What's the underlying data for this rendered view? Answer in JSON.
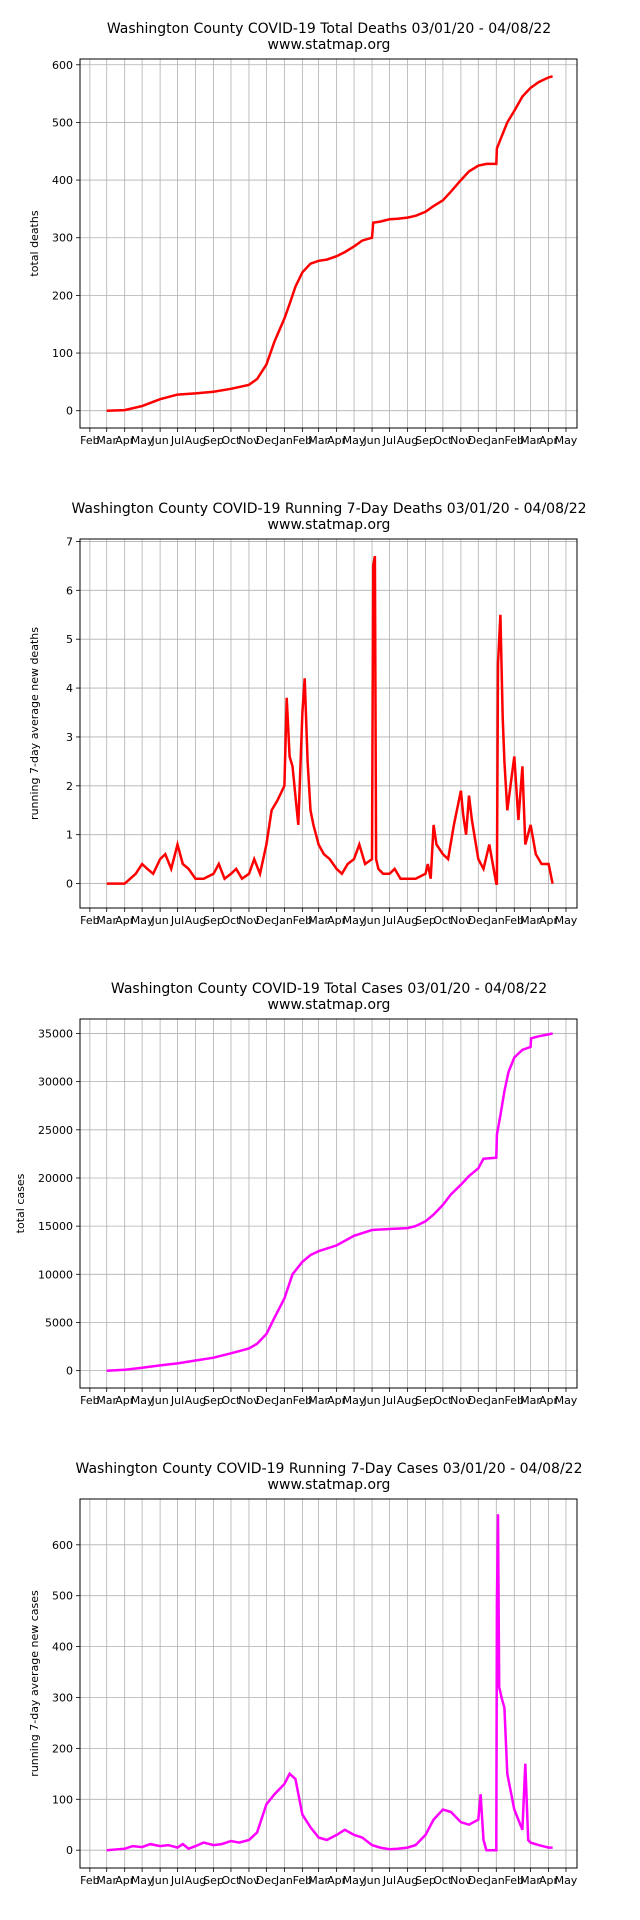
{
  "x_ticks": [
    "Feb",
    "Mar",
    "Apr",
    "May",
    "Jun",
    "Jul",
    "Aug",
    "Sep",
    "Oct",
    "Nov",
    "Dec",
    "Jan",
    "Feb",
    "Mar",
    "Apr",
    "May",
    "Jun",
    "Jul",
    "Aug",
    "Sep",
    "Oct",
    "Nov",
    "Dec",
    "Jan",
    "Feb",
    "Mar",
    "Apr",
    "May"
  ],
  "chart_data": [
    {
      "type": "line",
      "title": "Washington County COVID-19 Total Deaths 03/01/20 - 04/08/22",
      "subtitle": "www.statmap.org",
      "ylabel": "total deaths",
      "xlabel": "",
      "ylim": [
        -30,
        610
      ],
      "yticks": [
        0,
        100,
        200,
        300,
        400,
        500,
        600
      ],
      "grid": true,
      "color": "#ff0000",
      "series": [
        {
          "x": [
            "2020-03-01",
            "2020-04-01",
            "2020-05-01",
            "2020-06-01",
            "2020-07-01",
            "2020-08-01",
            "2020-09-01",
            "2020-10-01",
            "2020-11-01",
            "2020-11-15",
            "2020-12-01",
            "2020-12-15",
            "2021-01-01",
            "2021-01-10",
            "2021-01-20",
            "2021-02-01",
            "2021-02-15",
            "2021-03-01",
            "2021-03-15",
            "2021-04-01",
            "2021-04-15",
            "2021-05-01",
            "2021-05-15",
            "2021-06-01",
            "2021-06-03",
            "2021-06-15",
            "2021-07-01",
            "2021-07-15",
            "2021-08-01",
            "2021-08-15",
            "2021-09-01",
            "2021-09-15",
            "2021-10-01",
            "2021-10-15",
            "2021-11-01",
            "2021-11-15",
            "2021-12-01",
            "2021-12-15",
            "2022-01-01",
            "2022-01-02",
            "2022-01-10",
            "2022-01-20",
            "2022-02-01",
            "2022-02-15",
            "2022-03-01",
            "2022-03-15",
            "2022-04-01",
            "2022-04-08"
          ],
          "y": [
            0,
            1,
            8,
            20,
            28,
            30,
            33,
            38,
            45,
            55,
            80,
            120,
            160,
            185,
            215,
            240,
            255,
            260,
            262,
            268,
            275,
            285,
            295,
            300,
            326,
            328,
            332,
            333,
            335,
            338,
            345,
            355,
            365,
            380,
            400,
            415,
            425,
            428,
            428,
            455,
            475,
            500,
            520,
            545,
            560,
            570,
            578,
            580
          ]
        }
      ]
    },
    {
      "type": "line",
      "title": "Washington County COVID-19 Running 7-Day Deaths 03/01/20 - 04/08/22",
      "subtitle": "www.statmap.org",
      "ylabel": "running 7-day average new deaths",
      "xlabel": "",
      "ylim": [
        -0.5,
        7.05
      ],
      "yticks": [
        0,
        1,
        2,
        3,
        4,
        5,
        6,
        7
      ],
      "grid": true,
      "color": "#ff0000",
      "series": [
        {
          "x": [
            "2020-03-01",
            "2020-04-01",
            "2020-04-20",
            "2020-05-01",
            "2020-05-10",
            "2020-05-20",
            "2020-06-01",
            "2020-06-10",
            "2020-06-20",
            "2020-07-01",
            "2020-07-10",
            "2020-07-20",
            "2020-08-01",
            "2020-08-15",
            "2020-09-01",
            "2020-09-10",
            "2020-09-20",
            "2020-10-01",
            "2020-10-10",
            "2020-10-20",
            "2020-11-01",
            "2020-11-10",
            "2020-11-20",
            "2020-12-01",
            "2020-12-10",
            "2020-12-20",
            "2021-01-01",
            "2021-01-05",
            "2021-01-10",
            "2021-01-15",
            "2021-01-20",
            "2021-01-25",
            "2021-02-01",
            "2021-02-05",
            "2021-02-10",
            "2021-02-15",
            "2021-02-20",
            "2021-03-01",
            "2021-03-10",
            "2021-03-20",
            "2021-04-01",
            "2021-04-10",
            "2021-04-20",
            "2021-05-01",
            "2021-05-10",
            "2021-05-20",
            "2021-06-01",
            "2021-06-03",
            "2021-06-06",
            "2021-06-08",
            "2021-06-12",
            "2021-06-20",
            "2021-07-01",
            "2021-07-10",
            "2021-07-20",
            "2021-08-01",
            "2021-08-15",
            "2021-09-01",
            "2021-09-05",
            "2021-09-10",
            "2021-09-15",
            "2021-09-20",
            "2021-10-01",
            "2021-10-10",
            "2021-10-20",
            "2021-11-01",
            "2021-11-05",
            "2021-11-10",
            "2021-11-15",
            "2021-11-20",
            "2021-12-01",
            "2021-12-10",
            "2021-12-20",
            "2022-01-01",
            "2022-01-02",
            "2022-01-04",
            "2022-01-08",
            "2022-01-12",
            "2022-01-15",
            "2022-01-20",
            "2022-02-01",
            "2022-02-08",
            "2022-02-15",
            "2022-02-20",
            "2022-03-01",
            "2022-03-10",
            "2022-03-20",
            "2022-04-01",
            "2022-04-08"
          ],
          "y": [
            0,
            0,
            0.2,
            0.4,
            0.3,
            0.2,
            0.5,
            0.6,
            0.3,
            0.8,
            0.4,
            0.3,
            0.1,
            0.1,
            0.2,
            0.4,
            0.1,
            0.2,
            0.3,
            0.1,
            0.2,
            0.5,
            0.2,
            0.8,
            1.5,
            1.7,
            2.0,
            3.8,
            2.6,
            2.4,
            1.8,
            1.2,
            3.5,
            4.2,
            2.5,
            1.5,
            1.2,
            0.8,
            0.6,
            0.5,
            0.3,
            0.2,
            0.4,
            0.5,
            0.8,
            0.4,
            0.5,
            6.5,
            6.7,
            0.5,
            0.3,
            0.2,
            0.2,
            0.3,
            0.1,
            0.1,
            0.1,
            0.2,
            0.4,
            0.1,
            1.2,
            0.8,
            0.6,
            0.5,
            1.2,
            1.9,
            1.4,
            1.0,
            1.8,
            1.3,
            0.5,
            0.3,
            0.8,
            0.0,
            0.0,
            4.5,
            5.5,
            3.4,
            2.5,
            1.5,
            2.6,
            1.3,
            2.4,
            0.8,
            1.2,
            0.6,
            0.4,
            0.4,
            0.0
          ]
        }
      ]
    },
    {
      "type": "line",
      "title": "Washington County COVID-19 Total Cases 03/01/20 - 04/08/22",
      "subtitle": "www.statmap.org",
      "ylabel": "total cases",
      "xlabel": "",
      "ylim": [
        -1800,
        36500
      ],
      "yticks": [
        0,
        5000,
        10000,
        15000,
        20000,
        25000,
        30000,
        35000
      ],
      "grid": true,
      "color": "#ff00ff",
      "series": [
        {
          "x": [
            "2020-03-01",
            "2020-04-01",
            "2020-05-01",
            "2020-06-01",
            "2020-07-01",
            "2020-08-01",
            "2020-09-01",
            "2020-10-01",
            "2020-11-01",
            "2020-11-15",
            "2020-12-01",
            "2020-12-15",
            "2021-01-01",
            "2021-01-15",
            "2021-02-01",
            "2021-02-15",
            "2021-03-01",
            "2021-04-01",
            "2021-05-01",
            "2021-06-01",
            "2021-07-01",
            "2021-08-01",
            "2021-08-15",
            "2021-09-01",
            "2021-09-15",
            "2021-10-01",
            "2021-10-15",
            "2021-11-01",
            "2021-11-15",
            "2021-12-01",
            "2021-12-10",
            "2022-01-01",
            "2022-01-02",
            "2022-01-08",
            "2022-01-15",
            "2022-01-22",
            "2022-02-01",
            "2022-02-15",
            "2022-03-01",
            "2022-03-02",
            "2022-03-15",
            "2022-04-01",
            "2022-04-08"
          ],
          "y": [
            0,
            100,
            300,
            550,
            750,
            1050,
            1350,
            1800,
            2300,
            2800,
            3800,
            5500,
            7500,
            10000,
            11300,
            12000,
            12400,
            13000,
            14000,
            14600,
            14700,
            14800,
            15000,
            15500,
            16200,
            17200,
            18300,
            19300,
            20200,
            21000,
            22000,
            22100,
            24500,
            26500,
            29000,
            31000,
            32500,
            33300,
            33600,
            34500,
            34700,
            34900,
            35000
          ]
        }
      ]
    },
    {
      "type": "line",
      "title": "Washington County COVID-19 Running 7-Day Cases 03/01/20 - 04/08/22",
      "subtitle": "www.statmap.org",
      "ylabel": "running 7-day average new cases",
      "xlabel": "",
      "ylim": [
        -35,
        690
      ],
      "yticks": [
        0,
        100,
        200,
        300,
        400,
        500,
        600
      ],
      "grid": true,
      "color": "#ff00ff",
      "series": [
        {
          "x": [
            "2020-03-01",
            "2020-04-01",
            "2020-04-15",
            "2020-05-01",
            "2020-05-15",
            "2020-06-01",
            "2020-06-15",
            "2020-07-01",
            "2020-07-10",
            "2020-07-20",
            "2020-08-01",
            "2020-08-15",
            "2020-09-01",
            "2020-09-15",
            "2020-10-01",
            "2020-10-15",
            "2020-11-01",
            "2020-11-15",
            "2020-12-01",
            "2020-12-15",
            "2021-01-01",
            "2021-01-10",
            "2021-01-20",
            "2021-02-01",
            "2021-02-15",
            "2021-03-01",
            "2021-03-15",
            "2021-04-01",
            "2021-04-15",
            "2021-05-01",
            "2021-05-15",
            "2021-06-01",
            "2021-06-15",
            "2021-07-01",
            "2021-07-15",
            "2021-08-01",
            "2021-08-15",
            "2021-09-01",
            "2021-09-15",
            "2021-10-01",
            "2021-10-15",
            "2021-11-01",
            "2021-11-15",
            "2021-12-01",
            "2021-12-05",
            "2021-12-10",
            "2021-12-15",
            "2022-01-01",
            "2022-01-02",
            "2022-01-04",
            "2022-01-06",
            "2022-01-08",
            "2022-01-10",
            "2022-01-15",
            "2022-01-20",
            "2022-02-01",
            "2022-02-15",
            "2022-02-20",
            "2022-02-25",
            "2022-03-01",
            "2022-03-15",
            "2022-04-01",
            "2022-04-08"
          ],
          "y": [
            0,
            3,
            8,
            6,
            12,
            8,
            10,
            5,
            12,
            3,
            8,
            15,
            10,
            12,
            18,
            15,
            20,
            35,
            90,
            110,
            130,
            150,
            140,
            70,
            45,
            25,
            20,
            30,
            40,
            30,
            25,
            10,
            5,
            2,
            3,
            5,
            10,
            30,
            60,
            80,
            75,
            55,
            50,
            60,
            110,
            20,
            0,
            0,
            480,
            660,
            320,
            310,
            300,
            280,
            150,
            80,
            40,
            170,
            20,
            15,
            10,
            5,
            5
          ]
        }
      ]
    }
  ]
}
